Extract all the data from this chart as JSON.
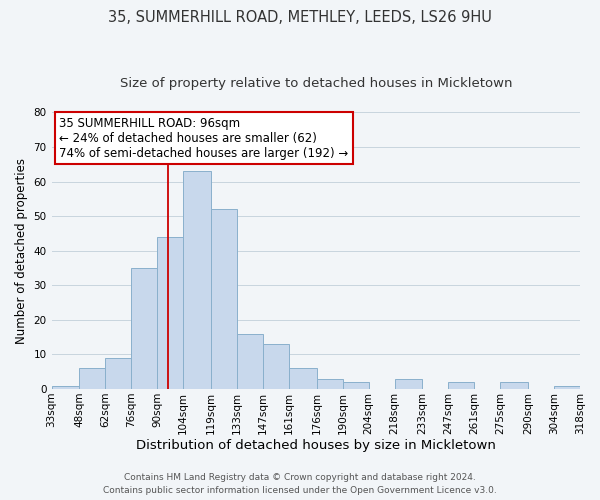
{
  "title_line1": "35, SUMMERHILL ROAD, METHLEY, LEEDS, LS26 9HU",
  "title_line2": "Size of property relative to detached houses in Mickletown",
  "xlabel": "Distribution of detached houses by size in Mickletown",
  "ylabel": "Number of detached properties",
  "bin_labels": [
    "33sqm",
    "48sqm",
    "62sqm",
    "76sqm",
    "90sqm",
    "104sqm",
    "119sqm",
    "133sqm",
    "147sqm",
    "161sqm",
    "176sqm",
    "190sqm",
    "204sqm",
    "218sqm",
    "233sqm",
    "247sqm",
    "261sqm",
    "275sqm",
    "290sqm",
    "304sqm",
    "318sqm"
  ],
  "bin_edges": [
    33,
    48,
    62,
    76,
    90,
    104,
    119,
    133,
    147,
    161,
    176,
    190,
    204,
    218,
    233,
    247,
    261,
    275,
    290,
    304,
    318
  ],
  "bar_heights": [
    1,
    6,
    9,
    35,
    44,
    63,
    52,
    16,
    13,
    6,
    3,
    2,
    0,
    3,
    0,
    2,
    0,
    2,
    0,
    1
  ],
  "bar_color": "#c8d8ec",
  "bar_edge_color": "#8ab0cc",
  "property_line_x": 96,
  "property_line_color": "#cc0000",
  "annotation_title": "35 SUMMERHILL ROAD: 96sqm",
  "annotation_line1": "← 24% of detached houses are smaller (62)",
  "annotation_line2": "74% of semi-detached houses are larger (192) →",
  "annotation_box_color": "#ffffff",
  "annotation_box_edge": "#cc0000",
  "ylim": [
    0,
    80
  ],
  "yticks": [
    0,
    10,
    20,
    30,
    40,
    50,
    60,
    70,
    80
  ],
  "footer_line1": "Contains HM Land Registry data © Crown copyright and database right 2024.",
  "footer_line2": "Contains public sector information licensed under the Open Government Licence v3.0.",
  "bg_color": "#f2f5f8",
  "plot_bg_color": "#f2f5f8",
  "title1_fontsize": 10.5,
  "title2_fontsize": 9.5,
  "annotation_fontsize": 8.5,
  "ylabel_fontsize": 8.5,
  "xlabel_fontsize": 9.5,
  "tick_fontsize": 7.5,
  "footer_fontsize": 6.5
}
